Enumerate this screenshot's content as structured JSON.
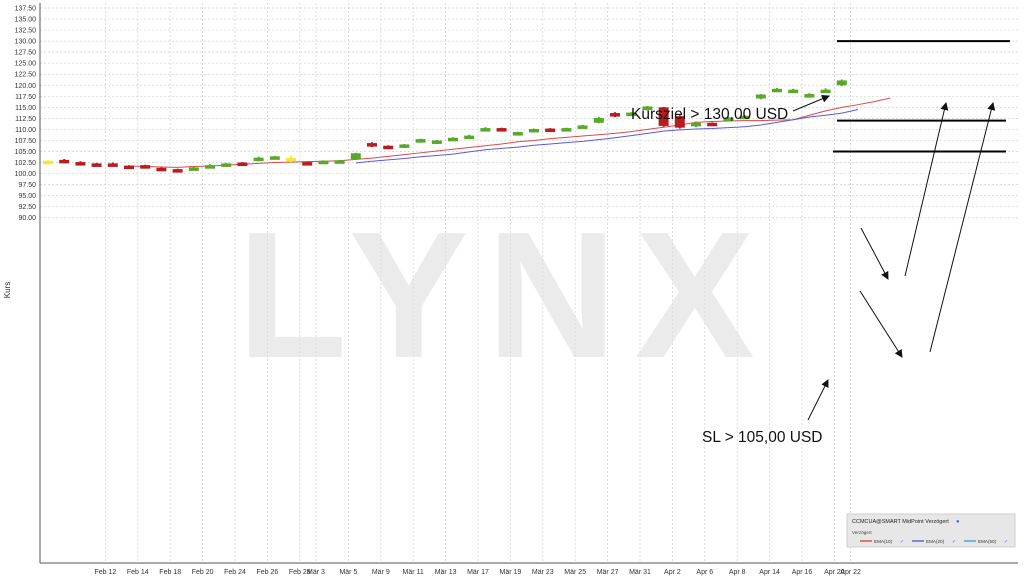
{
  "watermark": "LYNX",
  "chart_data": {
    "type": "candlestick",
    "ylabel": "Kurs",
    "ylim": [
      87.5,
      137.5
    ],
    "yticks": [
      "137.50",
      "135.00",
      "132.50",
      "130.00",
      "127.50",
      "125.00",
      "122.50",
      "120.00",
      "117.50",
      "115.00",
      "112.50",
      "110.00",
      "107.50",
      "105.00",
      "102.50",
      "100.00",
      "97.50",
      "95.00",
      "92.50",
      "90.00"
    ],
    "xtick_labels": [
      {
        "label": "Feb 12",
        "i": 2
      },
      {
        "label": "Feb 14",
        "i": 4
      },
      {
        "label": "Feb 18",
        "i": 6
      },
      {
        "label": "Feb 20",
        "i": 8
      },
      {
        "label": "Feb 24",
        "i": 10
      },
      {
        "label": "Feb 26",
        "i": 12
      },
      {
        "label": "Feb 28",
        "i": 14
      },
      {
        "label": "Mär 3",
        "i": 15
      },
      {
        "label": "Mär 5",
        "i": 17
      },
      {
        "label": "Mär 9",
        "i": 19
      },
      {
        "label": "Mär 11",
        "i": 21
      },
      {
        "label": "Mär 13",
        "i": 23
      },
      {
        "label": "Mär 17",
        "i": 25
      },
      {
        "label": "Mär 19",
        "i": 27
      },
      {
        "label": "Mär 23",
        "i": 29
      },
      {
        "label": "Mär 25",
        "i": 31
      },
      {
        "label": "Mär 27",
        "i": 33
      },
      {
        "label": "Mär 31",
        "i": 35
      },
      {
        "label": "Apr 2",
        "i": 37
      },
      {
        "label": "Apr 6",
        "i": 39
      },
      {
        "label": "Apr 8",
        "i": 41
      },
      {
        "label": "Apr 14",
        "i": 43
      },
      {
        "label": "Apr 16",
        "i": 45
      },
      {
        "label": "Apr 20",
        "i": 47
      },
      {
        "label": "Apr 22",
        "i": 48
      }
    ],
    "candles": [
      {
        "o": 102.7,
        "c": 102.9,
        "h": 103.0,
        "l": 102.6,
        "dir": "doji"
      },
      {
        "o": 103.1,
        "c": 102.9,
        "h": 103.3,
        "l": 102.7,
        "dir": "down"
      },
      {
        "o": 102.6,
        "c": 102.3,
        "h": 102.8,
        "l": 102.1,
        "dir": "down"
      },
      {
        "o": 102.3,
        "c": 102.0,
        "h": 102.4,
        "l": 101.9,
        "dir": "down"
      },
      {
        "o": 102.3,
        "c": 101.9,
        "h": 102.5,
        "l": 101.8,
        "dir": "down"
      },
      {
        "o": 101.8,
        "c": 101.6,
        "h": 101.9,
        "l": 101.5,
        "dir": "down"
      },
      {
        "o": 101.9,
        "c": 101.6,
        "h": 102.0,
        "l": 101.5,
        "dir": "down"
      },
      {
        "o": 101.3,
        "c": 101.0,
        "h": 101.4,
        "l": 100.9,
        "dir": "down"
      },
      {
        "o": 101.0,
        "c": 100.6,
        "h": 101.1,
        "l": 100.5,
        "dir": "down"
      },
      {
        "o": 101.0,
        "c": 101.4,
        "h": 101.6,
        "l": 100.9,
        "dir": "up"
      },
      {
        "o": 101.6,
        "c": 101.9,
        "h": 102.1,
        "l": 101.4,
        "dir": "up"
      },
      {
        "o": 102.0,
        "c": 102.3,
        "h": 102.4,
        "l": 101.9,
        "dir": "up"
      },
      {
        "o": 102.5,
        "c": 102.1,
        "h": 102.6,
        "l": 102.0,
        "dir": "down"
      },
      {
        "o": 103.0,
        "c": 103.6,
        "h": 103.8,
        "l": 102.8,
        "dir": "up"
      },
      {
        "o": 103.5,
        "c": 103.9,
        "h": 104.0,
        "l": 103.4,
        "dir": "up"
      },
      {
        "o": 103.5,
        "c": 103.0,
        "h": 104.0,
        "l": 102.6,
        "dir": "doji"
      },
      {
        "o": 102.6,
        "c": 102.3,
        "h": 102.7,
        "l": 102.2,
        "dir": "down"
      },
      {
        "o": 102.5,
        "c": 102.9,
        "h": 103.0,
        "l": 102.4,
        "dir": "up"
      },
      {
        "o": 102.6,
        "c": 103.0,
        "h": 103.1,
        "l": 102.5,
        "dir": "up"
      },
      {
        "o": 103.3,
        "c": 104.6,
        "h": 104.7,
        "l": 103.1,
        "dir": "up"
      },
      {
        "o": 106.9,
        "c": 106.2,
        "h": 107.1,
        "l": 106.0,
        "dir": "down"
      },
      {
        "o": 106.3,
        "c": 105.8,
        "h": 106.4,
        "l": 105.7,
        "dir": "down"
      },
      {
        "o": 105.9,
        "c": 106.6,
        "h": 106.7,
        "l": 105.8,
        "dir": "up"
      },
      {
        "o": 107.1,
        "c": 107.8,
        "h": 107.9,
        "l": 107.0,
        "dir": "up"
      },
      {
        "o": 106.9,
        "c": 107.5,
        "h": 107.6,
        "l": 106.8,
        "dir": "up"
      },
      {
        "o": 107.5,
        "c": 108.1,
        "h": 108.2,
        "l": 107.4,
        "dir": "up"
      },
      {
        "o": 108.0,
        "c": 108.6,
        "h": 108.8,
        "l": 107.9,
        "dir": "up"
      },
      {
        "o": 109.7,
        "c": 110.3,
        "h": 110.5,
        "l": 109.6,
        "dir": "up"
      },
      {
        "o": 110.3,
        "c": 109.8,
        "h": 110.4,
        "l": 109.6,
        "dir": "down"
      },
      {
        "o": 108.7,
        "c": 109.4,
        "h": 109.5,
        "l": 108.6,
        "dir": "up"
      },
      {
        "o": 109.8,
        "c": 110.1,
        "h": 110.2,
        "l": 109.7,
        "dir": "up"
      },
      {
        "o": 110.2,
        "c": 109.7,
        "h": 110.3,
        "l": 109.6,
        "dir": "down"
      },
      {
        "o": 109.7,
        "c": 110.3,
        "h": 110.4,
        "l": 109.6,
        "dir": "up"
      },
      {
        "o": 110.4,
        "c": 110.9,
        "h": 111.0,
        "l": 110.3,
        "dir": "up"
      },
      {
        "o": 111.5,
        "c": 112.6,
        "h": 112.8,
        "l": 111.4,
        "dir": "up"
      },
      {
        "o": 113.7,
        "c": 113.0,
        "h": 113.9,
        "l": 112.8,
        "dir": "down"
      },
      {
        "o": 113.2,
        "c": 113.8,
        "h": 113.9,
        "l": 113.1,
        "dir": "up"
      },
      {
        "o": 114.4,
        "c": 115.2,
        "h": 115.3,
        "l": 114.3,
        "dir": "up"
      },
      {
        "o": 115.0,
        "c": 110.8,
        "h": 115.1,
        "l": 110.6,
        "dir": "down"
      },
      {
        "o": 113.0,
        "c": 110.4,
        "h": 113.2,
        "l": 110.2,
        "dir": "down"
      },
      {
        "o": 110.7,
        "c": 111.5,
        "h": 111.8,
        "l": 110.5,
        "dir": "up"
      },
      {
        "o": 111.5,
        "c": 111.1,
        "h": 111.6,
        "l": 110.9,
        "dir": "down"
      },
      {
        "o": 112.2,
        "c": 112.7,
        "h": 112.9,
        "l": 112.1,
        "dir": "up"
      },
      {
        "o": 112.6,
        "c": 113.1,
        "h": 113.3,
        "l": 112.4,
        "dir": "up"
      },
      {
        "o": 117.0,
        "c": 117.9,
        "h": 118.0,
        "l": 116.8,
        "dir": "up"
      },
      {
        "o": 118.8,
        "c": 119.2,
        "h": 119.4,
        "l": 118.7,
        "dir": "up"
      },
      {
        "o": 118.6,
        "c": 119.0,
        "h": 119.2,
        "l": 118.5,
        "dir": "up"
      },
      {
        "o": 117.6,
        "c": 118.0,
        "h": 118.2,
        "l": 117.5,
        "dir": "up"
      },
      {
        "o": 118.4,
        "c": 119.0,
        "h": 119.3,
        "l": 118.3,
        "dir": "up"
      },
      {
        "o": 120.0,
        "c": 121.1,
        "h": 121.3,
        "l": 119.8,
        "dir": "up"
      }
    ],
    "series": [
      {
        "name": "EMA(10)",
        "color": "#d94a4a",
        "x_start": 5,
        "values": [
          101.7,
          101.6,
          101.5,
          101.4,
          101.6,
          101.7,
          101.9,
          102.1,
          102.3,
          102.5,
          102.6,
          102.7,
          102.8,
          102.9,
          103.2,
          103.5,
          103.9,
          104.3,
          104.7,
          105.1,
          105.5,
          105.9,
          106.3,
          106.7,
          107.2,
          107.5,
          107.9,
          108.2,
          108.5,
          108.8,
          109.1,
          109.5,
          110.0,
          110.5,
          111.0,
          111.6,
          111.8,
          111.9,
          112.0,
          112.0,
          112.1,
          112.2,
          113.2,
          114.2,
          115.0,
          115.6,
          116.3,
          117.1
        ]
      },
      {
        "name": "EMA(20)",
        "color": "#5a5ad9",
        "x_start": 19,
        "values": [
          102.4,
          102.8,
          103.1,
          103.4,
          103.8,
          104.1,
          104.4,
          104.9,
          105.4,
          105.7,
          106.0,
          106.4,
          106.7,
          107.0,
          107.3,
          107.7,
          108.1,
          108.6,
          109.1,
          109.6,
          109.9,
          110.1,
          110.2,
          110.4,
          110.6,
          111.0,
          111.6,
          112.2,
          112.8,
          113.2,
          113.7,
          114.5
        ]
      }
    ],
    "annotations": [
      {
        "text": "Kursziel > 130,00 USD",
        "y": 130.0
      },
      {
        "text": "SL > 105,00 USD",
        "y": 105.0
      }
    ],
    "levels": [
      {
        "y": 130.0,
        "label": "target"
      },
      {
        "y": 112.0,
        "label": "mid"
      },
      {
        "y": 105.0,
        "label": "stop"
      }
    ],
    "legend": {
      "position": "bottom-right",
      "title": "CCMCUA@SMART MidPoint Verzögert",
      "sub": "Verzögert",
      "items": [
        {
          "name": "EMA(10)",
          "color": "#d94a4a"
        },
        {
          "name": "EMA(20)",
          "color": "#5a5ad9"
        },
        {
          "name": "EMA(50)",
          "color": "#4aa0d9"
        }
      ]
    },
    "colors": {
      "up": "#58a82a",
      "down": "#b81c1c",
      "doji": "#f2ea2c"
    }
  }
}
